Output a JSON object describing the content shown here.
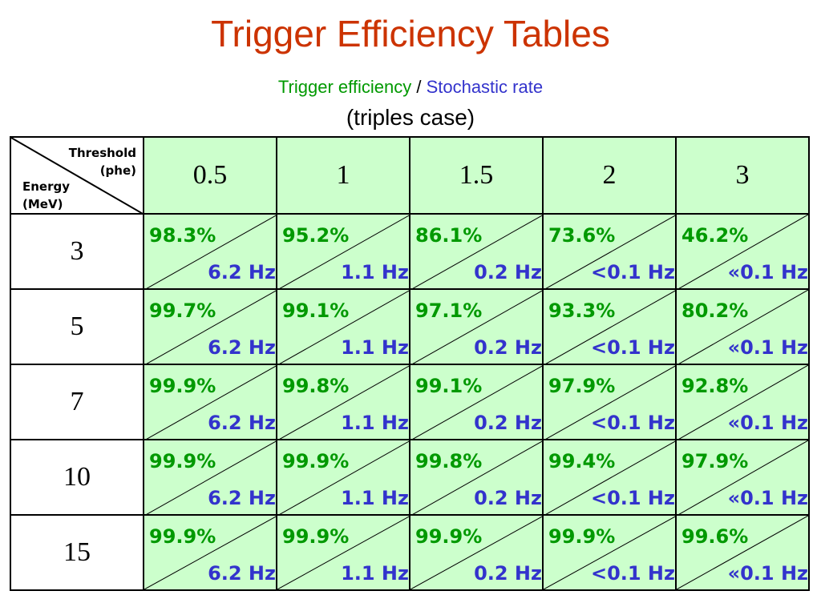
{
  "title": "Trigger Efficiency Tables",
  "subtitle": {
    "efficiency_label": "Trigger efficiency",
    "separator": " / ",
    "rate_label": "Stochastic rate",
    "case": "(triples case)"
  },
  "colors": {
    "title": "#cc3300",
    "efficiency": "#009900",
    "rate": "#3333cc",
    "cell_background": "#ccffcc"
  },
  "table": {
    "corner": {
      "threshold": "Threshold",
      "threshold_unit": "(phe)",
      "energy": "Energy",
      "energy_unit": "(MeV)"
    },
    "thresholds": [
      "0.5",
      "1",
      "1.5",
      "2",
      "3"
    ],
    "rows": [
      {
        "energy": "3",
        "efficiency": [
          "98.3%",
          "95.2%",
          "86.1%",
          "73.6%",
          "46.2%"
        ],
        "rate": [
          "6.2 Hz",
          "1.1 Hz",
          "0.2 Hz",
          "<0.1 Hz",
          "«0.1 Hz"
        ]
      },
      {
        "energy": "5",
        "efficiency": [
          "99.7%",
          "99.1%",
          "97.1%",
          "93.3%",
          "80.2%"
        ],
        "rate": [
          "6.2 Hz",
          "1.1 Hz",
          "0.2 Hz",
          "<0.1 Hz",
          "«0.1 Hz"
        ]
      },
      {
        "energy": "7",
        "efficiency": [
          "99.9%",
          "99.8%",
          "99.1%",
          "97.9%",
          "92.8%"
        ],
        "rate": [
          "6.2 Hz",
          "1.1 Hz",
          "0.2 Hz",
          "<0.1 Hz",
          "«0.1 Hz"
        ]
      },
      {
        "energy": "10",
        "efficiency": [
          "99.9%",
          "99.9%",
          "99.8%",
          "99.4%",
          "97.9%"
        ],
        "rate": [
          "6.2 Hz",
          "1.1 Hz",
          "0.2 Hz",
          "<0.1 Hz",
          "«0.1 Hz"
        ]
      },
      {
        "energy": "15",
        "efficiency": [
          "99.9%",
          "99.9%",
          "99.9%",
          "99.9%",
          "99.6%"
        ],
        "rate": [
          "6.2 Hz",
          "1.1 Hz",
          "0.2 Hz",
          "<0.1 Hz",
          "«0.1 Hz"
        ]
      }
    ]
  }
}
